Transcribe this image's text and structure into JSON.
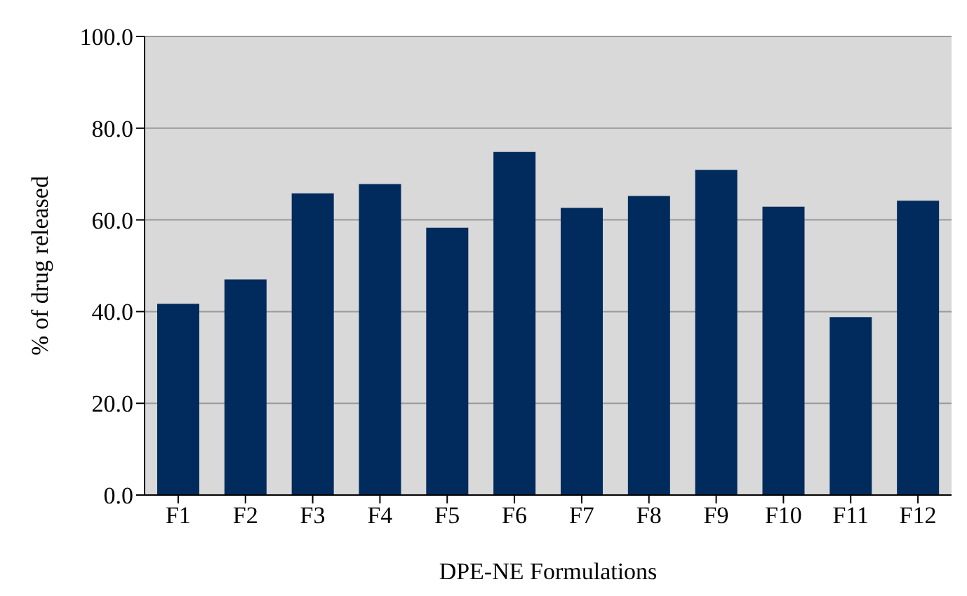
{
  "chart_data": {
    "type": "bar",
    "xlabel": "DPE-NE Formulations",
    "ylabel": "% of drug released",
    "categories": [
      "F1",
      "F2",
      "F3",
      "F4",
      "F5",
      "F6",
      "F7",
      "F8",
      "F9",
      "F10",
      "F11",
      "F12"
    ],
    "values": [
      41.7,
      47.0,
      65.8,
      67.8,
      58.3,
      74.8,
      62.6,
      65.2,
      70.9,
      62.9,
      38.8,
      64.2
    ],
    "color": "#002b5c",
    "ylim": [
      0,
      100
    ],
    "yticks": [
      {
        "value": 0,
        "label": "0.0"
      },
      {
        "value": 20,
        "label": "20.0"
      },
      {
        "value": 40,
        "label": "40.0"
      },
      {
        "value": 60,
        "label": "60.0"
      },
      {
        "value": 80,
        "label": "80.0"
      },
      {
        "value": 100,
        "label": "100.0"
      }
    ],
    "grid": "y"
  }
}
